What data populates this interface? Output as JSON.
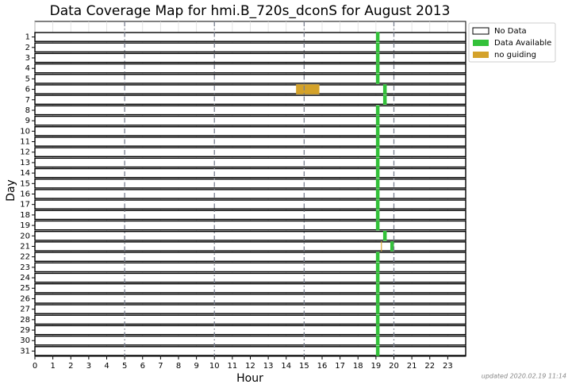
{
  "chart_data": {
    "type": "coverage",
    "title": "Data Coverage Map for hmi.B_720s_dconS for August 2013",
    "x_label": "Hour",
    "y_label": "Day",
    "footnote": "updated 2020.02.19 11:14",
    "categories": [
      "1",
      "2",
      "3",
      "4",
      "5",
      "6",
      "7",
      "8",
      "9",
      "10",
      "11",
      "12",
      "13",
      "14",
      "15",
      "16",
      "17",
      "18",
      "19",
      "20",
      "21",
      "22",
      "23",
      "24",
      "25",
      "26",
      "27",
      "28",
      "29",
      "30",
      "31"
    ],
    "xlim": [
      0,
      24
    ],
    "xticks": [
      0,
      1,
      2,
      3,
      4,
      5,
      6,
      7,
      8,
      9,
      10,
      11,
      12,
      13,
      14,
      15,
      16,
      17,
      18,
      19,
      20,
      21,
      22,
      23
    ],
    "major_grid": [
      5,
      10,
      15,
      20
    ],
    "grid": true,
    "edgecolor": "#000000",
    "legend": "outside-upper-right",
    "series": [
      {
        "name": "No Data",
        "color": "#ffffff",
        "values": [
          [
            [
              0,
              24
            ]
          ],
          [
            [
              0,
              24
            ]
          ],
          [
            [
              0,
              24
            ]
          ],
          [
            [
              0,
              24
            ]
          ],
          [
            [
              0,
              24
            ]
          ],
          [
            [
              0,
              24
            ]
          ],
          [
            [
              0,
              24
            ]
          ],
          [
            [
              0,
              24
            ]
          ],
          [
            [
              0,
              24
            ]
          ],
          [
            [
              0,
              24
            ]
          ],
          [
            [
              0,
              24
            ]
          ],
          [
            [
              0,
              24
            ]
          ],
          [
            [
              0,
              24
            ]
          ],
          [
            [
              0,
              24
            ]
          ],
          [
            [
              0,
              24
            ]
          ],
          [
            [
              0,
              24
            ]
          ],
          [
            [
              0,
              24
            ]
          ],
          [
            [
              0,
              24
            ]
          ],
          [
            [
              0,
              24
            ]
          ],
          [
            [
              0,
              24
            ]
          ],
          [
            [
              0,
              24
            ]
          ],
          [
            [
              0,
              24
            ]
          ],
          [
            [
              0,
              24
            ]
          ],
          [
            [
              0,
              24
            ]
          ],
          [
            [
              0,
              24
            ]
          ],
          [
            [
              0,
              24
            ]
          ],
          [
            [
              0,
              24
            ]
          ],
          [
            [
              0,
              24
            ]
          ],
          [
            [
              0,
              24
            ]
          ],
          [
            [
              0,
              24
            ]
          ],
          [
            [
              0,
              24
            ]
          ]
        ]
      },
      {
        "name": "Data Available",
        "color": "#33c13a",
        "values": [
          [
            [
              19,
              19.2
            ]
          ],
          [
            [
              19,
              19.2
            ]
          ],
          [
            [
              19,
              19.2
            ]
          ],
          [
            [
              19,
              19.2
            ]
          ],
          [
            [
              19,
              19.2
            ]
          ],
          [
            [
              19.4,
              19.6
            ]
          ],
          [
            [
              19.4,
              19.6
            ]
          ],
          [
            [
              19,
              19.2
            ]
          ],
          [
            [
              19,
              19.2
            ]
          ],
          [
            [
              19,
              19.2
            ]
          ],
          [
            [
              19,
              19.2
            ]
          ],
          [
            [
              19,
              19.2
            ]
          ],
          [
            [
              19,
              19.2
            ]
          ],
          [
            [
              19,
              19.2
            ]
          ],
          [
            [
              19,
              19.2
            ]
          ],
          [
            [
              19,
              19.2
            ]
          ],
          [
            [
              19,
              19.2
            ]
          ],
          [
            [
              19,
              19.2
            ]
          ],
          [
            [
              19,
              19.2
            ]
          ],
          [
            [
              19.4,
              19.6
            ]
          ],
          [
            [
              19.8,
              20
            ]
          ],
          [
            [
              19,
              19.2
            ]
          ],
          [
            [
              19,
              19.2
            ]
          ],
          [
            [
              19,
              19.2
            ]
          ],
          [
            [
              19,
              19.2
            ]
          ],
          [
            [
              19,
              19.2
            ]
          ],
          [
            [
              19,
              19.2
            ]
          ],
          [
            [
              19,
              19.2
            ]
          ],
          [
            [
              19,
              19.2
            ]
          ],
          [
            [
              19,
              19.2
            ]
          ],
          [
            [
              19,
              19.2
            ]
          ]
        ]
      },
      {
        "name": "no guiding",
        "color": "#d4a22a",
        "values": [
          [],
          [],
          [],
          [],
          [],
          [
            [
              14.55,
              15.85
            ]
          ],
          [],
          [],
          [],
          [],
          [],
          [],
          [],
          [],
          [],
          [],
          [],
          [],
          [],
          [],
          [
            [
              19.28,
              19.33
            ]
          ],
          [],
          [],
          [],
          [],
          [],
          [],
          [],
          [],
          [],
          []
        ]
      }
    ]
  }
}
